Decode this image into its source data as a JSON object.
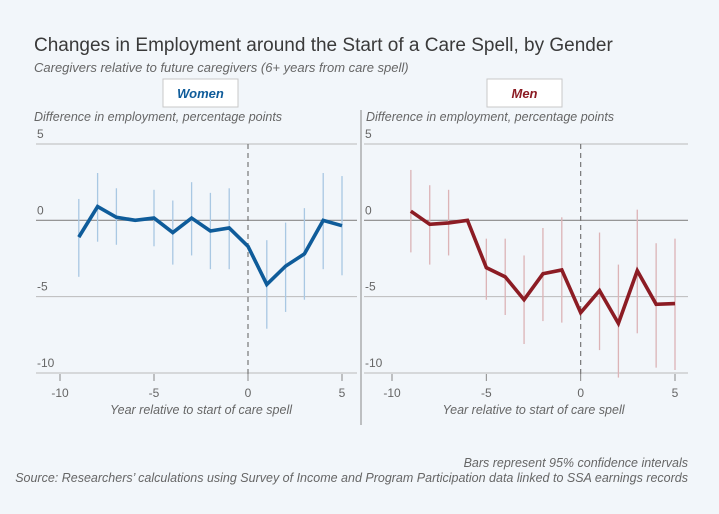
{
  "title": "Changes in Employment around the Start of a Care Spell, by Gender",
  "subtitle": "Caregivers relative to future caregivers (6+ years from care spell)",
  "notes": {
    "line1": "Bars represent 95% confidence intervals",
    "line2": "Source: Researchers’ calculations using Survey of Income and Program Participation data linked to SSA earnings records"
  },
  "chart_data": [
    {
      "type": "line",
      "panel_label": "Women",
      "color": "#0f5c9a",
      "ci_color": "#a9c8e3",
      "ylabel": "Difference in employment, percentage points",
      "xlabel": "Year relative to start of care spell",
      "xlim": [
        -10,
        5
      ],
      "ylim": [
        -10,
        5
      ],
      "xticks": [
        -10,
        -5,
        0,
        5
      ],
      "yticks": [
        5,
        0,
        -5,
        -10
      ],
      "reference_line_x": 0,
      "grid": true,
      "x": [
        -9,
        -8,
        -7,
        -6,
        -5,
        -4,
        -3,
        -2,
        -1,
        0,
        1,
        2,
        3,
        4,
        5
      ],
      "y": [
        -1.1,
        0.9,
        0.2,
        0.0,
        0.15,
        -0.8,
        0.15,
        -0.7,
        -0.5,
        -1.7,
        -4.2,
        -3.0,
        -2.2,
        0.0,
        -0.35
      ],
      "ci_upper": [
        1.4,
        3.1,
        2.1,
        null,
        2.0,
        1.3,
        2.5,
        1.8,
        2.1,
        null,
        -1.3,
        -0.15,
        0.8,
        3.1,
        2.9
      ],
      "ci_lower": [
        -3.7,
        -1.4,
        -1.6,
        null,
        -1.7,
        -2.9,
        -2.3,
        -3.2,
        -3.2,
        null,
        -7.1,
        -6.0,
        -5.2,
        -3.2,
        -3.6
      ]
    },
    {
      "type": "line",
      "panel_label": "Men",
      "color": "#8c1c24",
      "ci_color": "#dcb3b6",
      "ylabel": "Difference in employment, percentage points",
      "xlabel": "Year relative to start of care spell",
      "xlim": [
        -10,
        5
      ],
      "ylim": [
        -10,
        5
      ],
      "xticks": [
        -10,
        -5,
        0,
        5
      ],
      "yticks": [
        5,
        0,
        -5,
        -10
      ],
      "reference_line_x": 0,
      "grid": true,
      "x": [
        -9,
        -8,
        -7,
        -6,
        -5,
        -4,
        -3,
        -2,
        -1,
        0,
        1,
        2,
        3,
        4,
        5
      ],
      "y": [
        0.6,
        -0.26,
        -0.17,
        0.0,
        -3.1,
        -3.7,
        -5.2,
        -3.5,
        -3.25,
        -6.05,
        -4.6,
        -6.75,
        -3.3,
        -5.5,
        -5.45
      ],
      "ci_upper": [
        3.3,
        2.3,
        2.0,
        null,
        -1.2,
        -1.2,
        -2.3,
        -0.5,
        0.2,
        null,
        -0.8,
        -2.9,
        0.7,
        -1.5,
        -1.2
      ],
      "ci_lower": [
        -2.1,
        -2.9,
        -2.3,
        null,
        -5.2,
        -6.2,
        -8.1,
        -6.6,
        -6.7,
        null,
        -8.5,
        -10.7,
        -7.4,
        -9.65,
        -9.8
      ]
    }
  ]
}
